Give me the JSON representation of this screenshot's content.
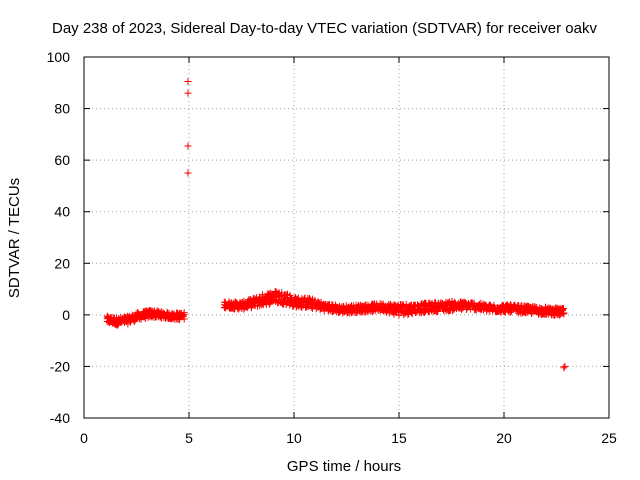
{
  "chart_data": {
    "type": "scatter",
    "title": "Day 238 of 2023, Sidereal Day-to-day VTEC variation (SDTVAR) for receiver oakv",
    "xlabel": "GPS time / hours",
    "ylabel": "SDTVAR / TECUs",
    "xlim": [
      0,
      25
    ],
    "ylim": [
      -40,
      100
    ],
    "xticks": [
      0,
      5,
      10,
      15,
      20,
      25
    ],
    "yticks": [
      -40,
      -20,
      0,
      20,
      40,
      60,
      80,
      100
    ],
    "grid": true,
    "marker": "+",
    "series_color": "#ff0000",
    "series": [
      {
        "name": "SDTVAR",
        "band_profile": [
          {
            "x": 1.1,
            "center": -2.0,
            "spread": 1.5
          },
          {
            "x": 1.6,
            "center": -2.5,
            "spread": 1.5
          },
          {
            "x": 2.1,
            "center": -2.0,
            "spread": 1.5
          },
          {
            "x": 2.6,
            "center": -0.5,
            "spread": 1.5
          },
          {
            "x": 3.2,
            "center": 0.5,
            "spread": 1.5
          },
          {
            "x": 3.7,
            "center": 0.0,
            "spread": 1.3
          },
          {
            "x": 4.2,
            "center": -0.5,
            "spread": 1.3
          },
          {
            "x": 4.8,
            "center": -0.5,
            "spread": 1.5
          },
          {
            "x": 6.7,
            "center": 4.0,
            "spread": 1.3
          },
          {
            "x": 7.5,
            "center": 3.5,
            "spread": 1.5
          },
          {
            "x": 8.2,
            "center": 5.0,
            "spread": 2.0
          },
          {
            "x": 9.0,
            "center": 7.0,
            "spread": 2.5
          },
          {
            "x": 9.6,
            "center": 6.5,
            "spread": 2.5
          },
          {
            "x": 10.0,
            "center": 5.0,
            "spread": 2.0
          },
          {
            "x": 10.8,
            "center": 4.5,
            "spread": 2.0
          },
          {
            "x": 11.5,
            "center": 3.0,
            "spread": 1.5
          },
          {
            "x": 12.3,
            "center": 2.0,
            "spread": 1.5
          },
          {
            "x": 13.2,
            "center": 2.5,
            "spread": 1.5
          },
          {
            "x": 14.2,
            "center": 3.0,
            "spread": 1.5
          },
          {
            "x": 15.0,
            "center": 2.0,
            "spread": 2.5
          },
          {
            "x": 15.8,
            "center": 2.5,
            "spread": 1.8
          },
          {
            "x": 16.7,
            "center": 3.0,
            "spread": 1.8
          },
          {
            "x": 17.6,
            "center": 3.5,
            "spread": 1.8
          },
          {
            "x": 18.5,
            "center": 3.5,
            "spread": 1.5
          },
          {
            "x": 19.3,
            "center": 2.5,
            "spread": 1.5
          },
          {
            "x": 20.2,
            "center": 2.5,
            "spread": 1.5
          },
          {
            "x": 21.0,
            "center": 2.0,
            "spread": 1.5
          },
          {
            "x": 22.0,
            "center": 1.5,
            "spread": 1.5
          },
          {
            "x": 22.9,
            "center": 1.0,
            "spread": 1.5
          }
        ],
        "gaps": [
          [
            4.9,
            6.6
          ]
        ],
        "outliers": [
          {
            "x": 4.95,
            "y": 90.5
          },
          {
            "x": 4.95,
            "y": 86.0
          },
          {
            "x": 4.95,
            "y": 65.5
          },
          {
            "x": 4.95,
            "y": 55.0
          },
          {
            "x": 22.85,
            "y": -20.5
          },
          {
            "x": 22.9,
            "y": -20.0
          }
        ]
      }
    ]
  }
}
